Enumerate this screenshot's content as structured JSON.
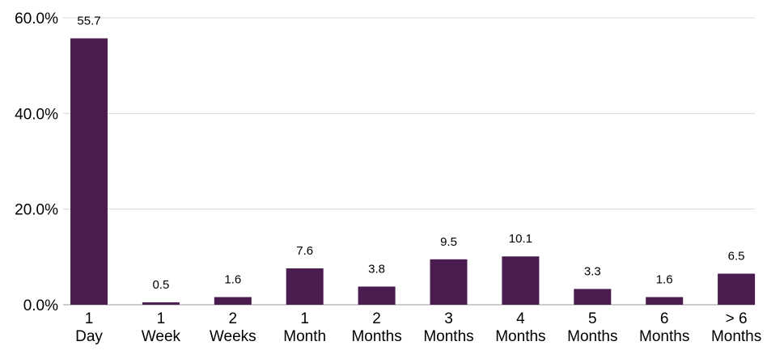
{
  "chart_data": {
    "type": "bar",
    "categories": [
      "1\nDay",
      "1\nWeek",
      "2\nWeeks",
      "1\nMonth",
      "2\nMonths",
      "3\nMonths",
      "4\nMonths",
      "5\nMonths",
      "6\nMonths",
      "> 6\nMonths"
    ],
    "values": [
      55.7,
      0.5,
      1.6,
      7.6,
      3.8,
      9.5,
      10.1,
      3.3,
      1.6,
      6.5
    ],
    "color": "#4a1c50",
    "ylim": [
      0,
      60
    ],
    "yticks": [
      {
        "value": 0,
        "label": "0.0%"
      },
      {
        "value": 20,
        "label": "20.0%"
      },
      {
        "value": 40,
        "label": "40.0%"
      },
      {
        "value": 60,
        "label": "60.0%"
      }
    ],
    "grid": true
  }
}
